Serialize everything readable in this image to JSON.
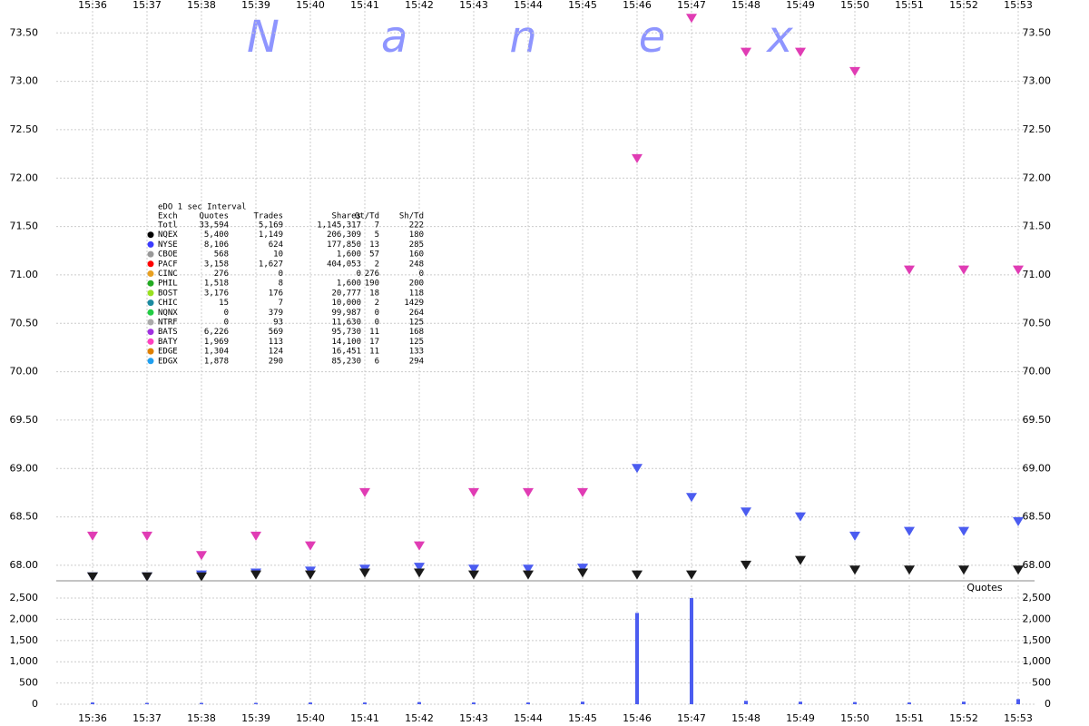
{
  "chart_data": [
    {
      "type": "scatter",
      "title": "Nanex",
      "categories": [
        "15:36",
        "15:37",
        "15:38",
        "15:39",
        "15:40",
        "15:41",
        "15:42",
        "15:43",
        "15:44",
        "15:45",
        "15:46",
        "15:47",
        "15:48",
        "15:49",
        "15:50",
        "15:51",
        "15:52",
        "15:53"
      ],
      "series": [
        {
          "color": "#e03cb4",
          "values": [
            68.3,
            68.3,
            68.1,
            68.3,
            68.2,
            68.75,
            68.2,
            68.75,
            68.75,
            68.75,
            72.2,
            73.65,
            73.3,
            73.3,
            73.1,
            71.05,
            71.05,
            71.05
          ]
        },
        {
          "color": "#4b5cf0",
          "values": [
            67.88,
            67.88,
            67.9,
            67.92,
            67.94,
            67.96,
            67.98,
            67.96,
            67.96,
            67.97,
            69.0,
            68.7,
            68.55,
            68.5,
            68.3,
            68.35,
            68.35,
            68.45
          ]
        },
        {
          "color": "#1a1a1a",
          "values": [
            67.88,
            67.88,
            67.88,
            67.9,
            67.9,
            67.92,
            67.92,
            67.9,
            67.9,
            67.92,
            67.9,
            67.9,
            68.0,
            68.05,
            67.95,
            67.95,
            67.95,
            67.95
          ]
        }
      ],
      "ylim": [
        67.84,
        73.84
      ],
      "yticks": [
        {
          "value": 68,
          "label": "68.00"
        },
        {
          "value": 68.5,
          "label": "68.50"
        },
        {
          "value": 69,
          "label": "69.00"
        },
        {
          "value": 69.5,
          "label": "69.50"
        },
        {
          "value": 70,
          "label": "70.00"
        },
        {
          "value": 70.5,
          "label": "70.50"
        },
        {
          "value": 71,
          "label": "71.00"
        },
        {
          "value": 71.5,
          "label": "71.50"
        },
        {
          "value": 72,
          "label": "72.00"
        },
        {
          "value": 72.5,
          "label": "72.50"
        },
        {
          "value": 73,
          "label": "73.00"
        },
        {
          "value": 73.5,
          "label": "73.50"
        }
      ],
      "grid": true
    },
    {
      "type": "bar",
      "label": "Quotes",
      "color": "#4b5cf0",
      "categories": [
        "15:36",
        "15:37",
        "15:38",
        "15:39",
        "15:40",
        "15:41",
        "15:42",
        "15:43",
        "15:44",
        "15:45",
        "15:46",
        "15:47",
        "15:48",
        "15:49",
        "15:50",
        "15:51",
        "15:52",
        "15:53"
      ],
      "values": [
        40,
        30,
        30,
        30,
        40,
        40,
        50,
        40,
        40,
        60,
        2150,
        2500,
        80,
        60,
        50,
        40,
        60,
        120
      ],
      "ylim": [
        0,
        2800
      ],
      "yticks": [
        0,
        500,
        {
          "value": 1000,
          "label": "1,000"
        },
        {
          "value": 1500,
          "label": "1,500"
        },
        {
          "value": 2000,
          "label": "2,000"
        },
        {
          "value": 2500,
          "label": "2,500"
        }
      ],
      "grid": true
    }
  ],
  "stats_table": {
    "title": "eDO 1 sec Interval",
    "columns": [
      "Exch",
      "Quotes",
      "Trades",
      "Shares",
      "Qt/Td",
      "Sh/Td"
    ],
    "rows": [
      {
        "color": "",
        "cells": [
          "Totl",
          "33,594",
          "5,169",
          "1,145,317",
          "7",
          "222"
        ]
      },
      {
        "color": "#000000",
        "cells": [
          "NQEX",
          "5,400",
          "1,149",
          "206,309",
          "5",
          "180"
        ]
      },
      {
        "color": "#3b3bff",
        "cells": [
          "NYSE",
          "8,106",
          "624",
          "177,850",
          "13",
          "285"
        ]
      },
      {
        "color": "#999999",
        "cells": [
          "CBOE",
          "568",
          "10",
          "1,600",
          "57",
          "160"
        ]
      },
      {
        "color": "#ff0000",
        "cells": [
          "PACF",
          "3,158",
          "1,627",
          "404,053",
          "2",
          "248"
        ]
      },
      {
        "color": "#e8a020",
        "cells": [
          "CINC",
          "276",
          "0",
          "0",
          "276",
          "0"
        ]
      },
      {
        "color": "#22aa22",
        "cells": [
          "PHIL",
          "1,518",
          "8",
          "1,600",
          "190",
          "200"
        ]
      },
      {
        "color": "#99e020",
        "cells": [
          "BOST",
          "3,176",
          "176",
          "20,777",
          "18",
          "118"
        ]
      },
      {
        "color": "#1a8aa0",
        "cells": [
          "CHIC",
          "15",
          "7",
          "10,000",
          "2",
          "1429"
        ]
      },
      {
        "color": "#22cc44",
        "cells": [
          "NQNX",
          "0",
          "379",
          "99,987",
          "0",
          "264"
        ]
      },
      {
        "color": "#aaaaaa",
        "cells": [
          "NTRF",
          "0",
          "93",
          "11,630",
          "0",
          "125"
        ]
      },
      {
        "color": "#a030e0",
        "cells": [
          "BATS",
          "6,226",
          "569",
          "95,730",
          "11",
          "168"
        ]
      },
      {
        "color": "#ff40c0",
        "cells": [
          "BATY",
          "1,969",
          "113",
          "14,100",
          "17",
          "125"
        ]
      },
      {
        "color": "#e08000",
        "cells": [
          "EDGE",
          "1,304",
          "124",
          "16,451",
          "11",
          "133"
        ]
      },
      {
        "color": "#20a0f0",
        "cells": [
          "EDGX",
          "1,878",
          "290",
          "85,230",
          "6",
          "294"
        ]
      }
    ]
  }
}
